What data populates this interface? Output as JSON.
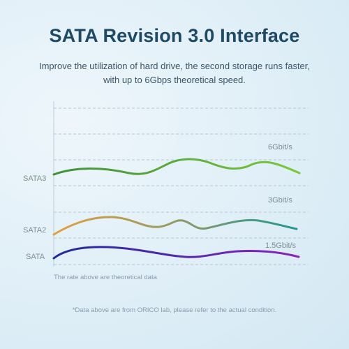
{
  "header": {
    "title": "SATA Revision 3.0 Interface",
    "subtitle_line1": "Improve the utilization of hard drive, the second storage runs faster,",
    "subtitle_line2": "with up to 6Gbps theoretical speed."
  },
  "chart_data": {
    "type": "line",
    "categories": [
      "SATA3",
      "SATA2",
      "SATA"
    ],
    "speed_labels": [
      "6Gbit/s",
      "3Gbit/s",
      "1.5Gbit/s"
    ],
    "series": [
      {
        "name": "SATA3",
        "speed": "6Gbit/s",
        "colors": [
          "#3f8f3c",
          "#7cc83a"
        ]
      },
      {
        "name": "SATA2",
        "speed": "3Gbit/s",
        "colors": [
          "#e3a13a",
          "#1f9a8f"
        ]
      },
      {
        "name": "SATA",
        "speed": "1.5Gbit/s",
        "colors": [
          "#1c2c9c",
          "#8b24c2"
        ]
      }
    ],
    "grid": true,
    "note": "The rate above are theoretical data"
  },
  "footer": {
    "note": "*Data above are from ORICO lab, please refer to the actual condition."
  }
}
